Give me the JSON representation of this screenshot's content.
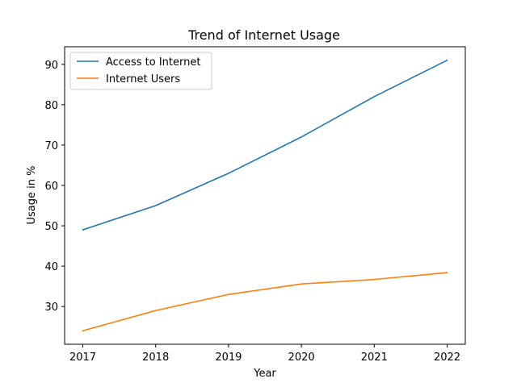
{
  "chart_data": {
    "type": "line",
    "title": "Trend of Internet Usage",
    "xlabel": "Year",
    "ylabel": "Usage in %",
    "x": [
      "2017",
      "2018",
      "2019",
      "2020",
      "2021",
      "2022"
    ],
    "series": [
      {
        "name": "Access to Internet",
        "color": "#1f77b4",
        "values": [
          49,
          55,
          63,
          72,
          82,
          91
        ]
      },
      {
        "name": "Internet Users",
        "color": "#ff7f0e",
        "values": [
          24,
          29,
          33,
          35.6,
          36.7,
          38.4
        ]
      }
    ],
    "ylim": [
      20.65,
      94.35
    ],
    "yticks": [
      30,
      40,
      50,
      60,
      70,
      80,
      90
    ],
    "grid": false,
    "legend_position": "upper-left"
  }
}
